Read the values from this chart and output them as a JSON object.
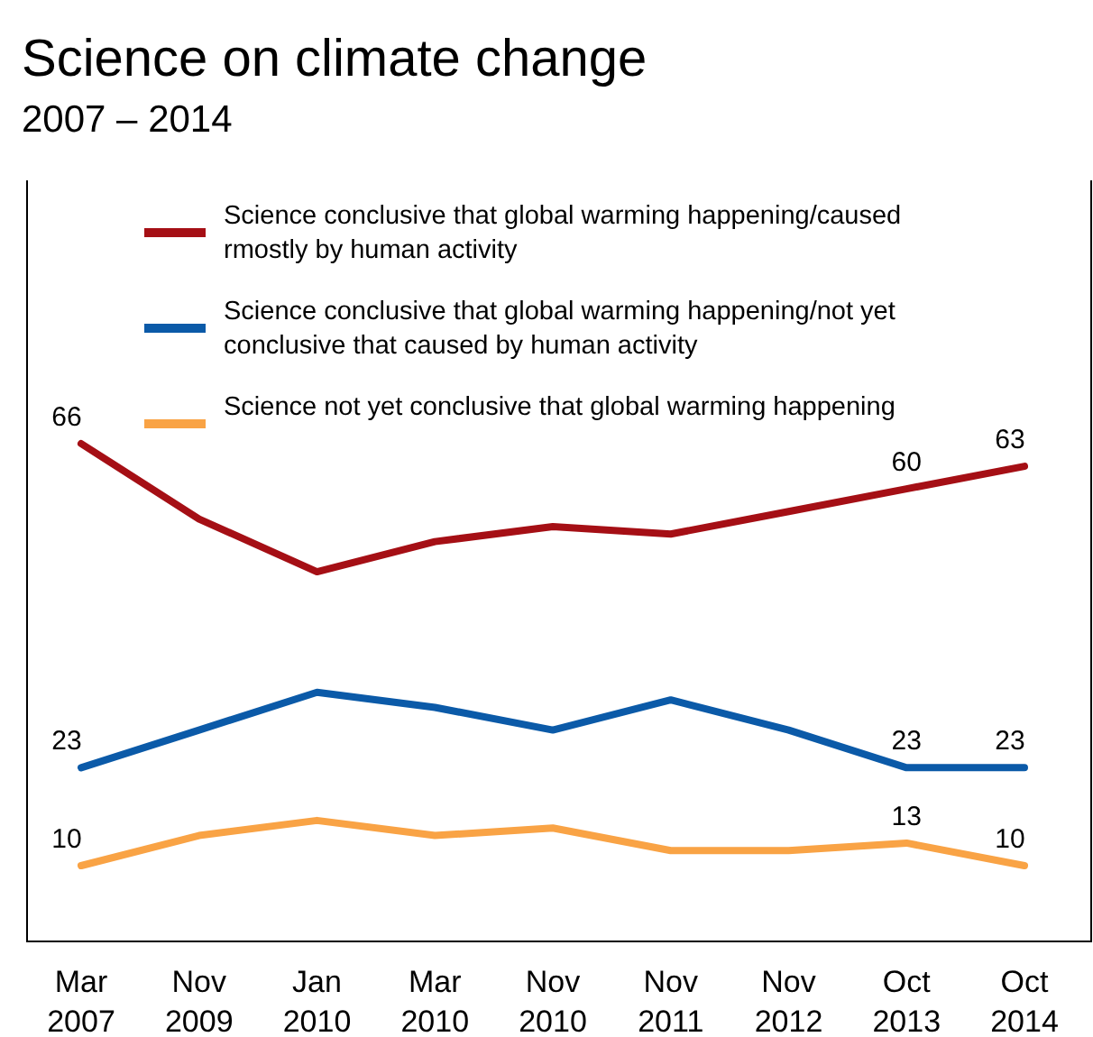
{
  "chart_data": {
    "type": "line",
    "title": "Science on climate change",
    "subtitle": "2007 – 2014",
    "categories": [
      "Mar 2007",
      "Nov 2009",
      "Jan 2010",
      "Mar 2010",
      "Nov 2010",
      "Nov 2011",
      "Nov 2012",
      "Oct 2013",
      "Oct 2014"
    ],
    "series": [
      {
        "name": "Science conclusive that global warming happening/caused rmostly by human activity",
        "color": "#a50f15",
        "values": [
          66,
          56,
          49,
          53,
          55,
          54,
          57,
          60,
          63
        ],
        "value_labels": [
          "66",
          null,
          null,
          null,
          null,
          null,
          null,
          "60",
          "63"
        ]
      },
      {
        "name": "Science conclusive that global warming happening/not yet conclusive that caused by human activity",
        "color": "#0b5aa8",
        "values": [
          23,
          28,
          33,
          31,
          28,
          32,
          28,
          23,
          23
        ],
        "value_labels": [
          "23",
          null,
          null,
          null,
          null,
          null,
          null,
          "23",
          "23"
        ]
      },
      {
        "name": "Science not yet conclusive that global warming happening",
        "color": "#f9a345",
        "values": [
          10,
          14,
          16,
          14,
          15,
          12,
          12,
          13,
          10
        ],
        "value_labels": [
          "10",
          null,
          null,
          null,
          null,
          null,
          null,
          "13",
          "10"
        ]
      }
    ],
    "legend": "top left",
    "marker": "none",
    "line_style": "solid"
  }
}
